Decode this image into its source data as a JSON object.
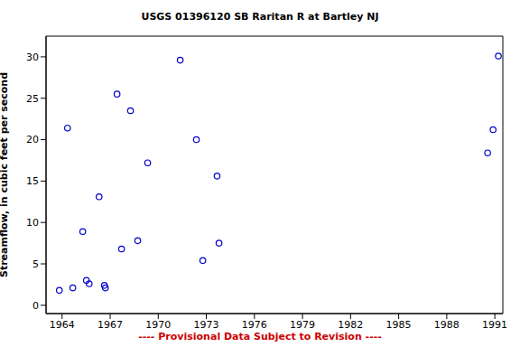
{
  "chart_data": {
    "type": "scatter",
    "title": "USGS 01396120 SB Raritan R at Bartley NJ",
    "y_label": "Streamflow, in cubic feet per second",
    "annotation": "---- Provisional Data Subject to Revision ----",
    "x": [
      1963.83,
      1964.34,
      1964.67,
      1965.29,
      1965.52,
      1965.69,
      1966.31,
      1966.64,
      1966.7,
      1967.43,
      1967.71,
      1968.27,
      1968.72,
      1969.34,
      1971.37,
      1972.38,
      1972.78,
      1973.67,
      1973.79,
      1990.55,
      1990.89,
      1991.22
    ],
    "values": [
      1.8,
      21.4,
      2.1,
      8.9,
      3.0,
      2.6,
      13.1,
      2.4,
      2.1,
      25.5,
      6.8,
      23.5,
      7.8,
      17.2,
      29.6,
      20.0,
      5.4,
      15.6,
      7.5,
      18.4,
      21.2,
      30.1
    ],
    "color": "#0000cc",
    "marker": "circle",
    "xlim": [
      1963,
      1991.5
    ],
    "ylim": [
      -1,
      32.5
    ],
    "xticks": [
      1964,
      1967,
      1970,
      1973,
      1976,
      1979,
      1982,
      1985,
      1988,
      1991
    ],
    "yticks": [
      0,
      5,
      10,
      15,
      20,
      25,
      30
    ],
    "grid": false
  }
}
